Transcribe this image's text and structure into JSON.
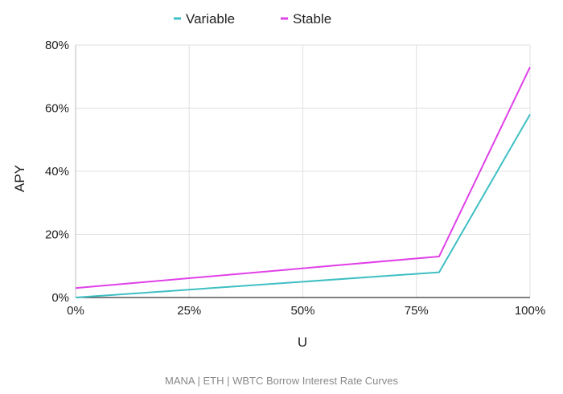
{
  "caption": "MANA | ETH | WBTC Borrow Interest Rate Curves",
  "chart_data": {
    "type": "line",
    "title": "",
    "xlabel": "U",
    "ylabel": "APY",
    "x_ticks": [
      "0%",
      "25%",
      "50%",
      "75%",
      "100%"
    ],
    "y_ticks": [
      "0%",
      "20%",
      "40%",
      "60%",
      "80%"
    ],
    "xlim": [
      0,
      100
    ],
    "ylim": [
      0,
      80
    ],
    "grid": true,
    "legend_position": "top-center",
    "series": [
      {
        "name": "Variable",
        "color": "#3fbfc3",
        "x": [
          0,
          80,
          100
        ],
        "y": [
          0,
          8,
          58
        ]
      },
      {
        "name": "Stable",
        "color": "#e040e8",
        "x": [
          0,
          80,
          100
        ],
        "y": [
          3,
          13,
          73
        ]
      }
    ]
  }
}
